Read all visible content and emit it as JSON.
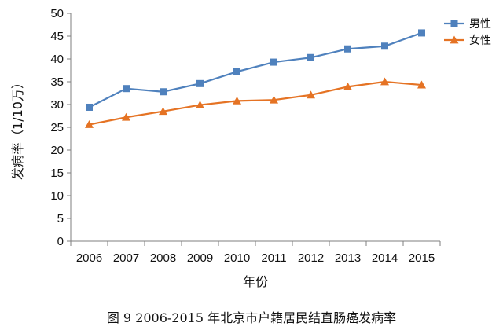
{
  "chart_data": {
    "type": "line",
    "caption": "图 9    2006-2015 年北京市户籍居民结直肠癌发病率",
    "xlabel": "年份",
    "ylabel": "发病率（1/10万）",
    "categories": [
      "2006",
      "2007",
      "2008",
      "2009",
      "2010",
      "2011",
      "2012",
      "2013",
      "2014",
      "2015"
    ],
    "ylim": [
      0,
      50
    ],
    "yticks": [
      0,
      5,
      10,
      15,
      20,
      25,
      30,
      35,
      40,
      45,
      50
    ],
    "grid": false,
    "legend_position": "top-right",
    "series": [
      {
        "name": "男性",
        "color": "#4f81bd",
        "marker": "square",
        "values": [
          29.4,
          33.5,
          32.8,
          34.6,
          37.2,
          39.3,
          40.3,
          42.2,
          42.8,
          45.7
        ]
      },
      {
        "name": "女性",
        "color": "#e57324",
        "marker": "triangle",
        "values": [
          25.6,
          27.2,
          28.5,
          29.9,
          30.8,
          31.0,
          32.1,
          33.9,
          35.0,
          34.3
        ]
      }
    ]
  }
}
